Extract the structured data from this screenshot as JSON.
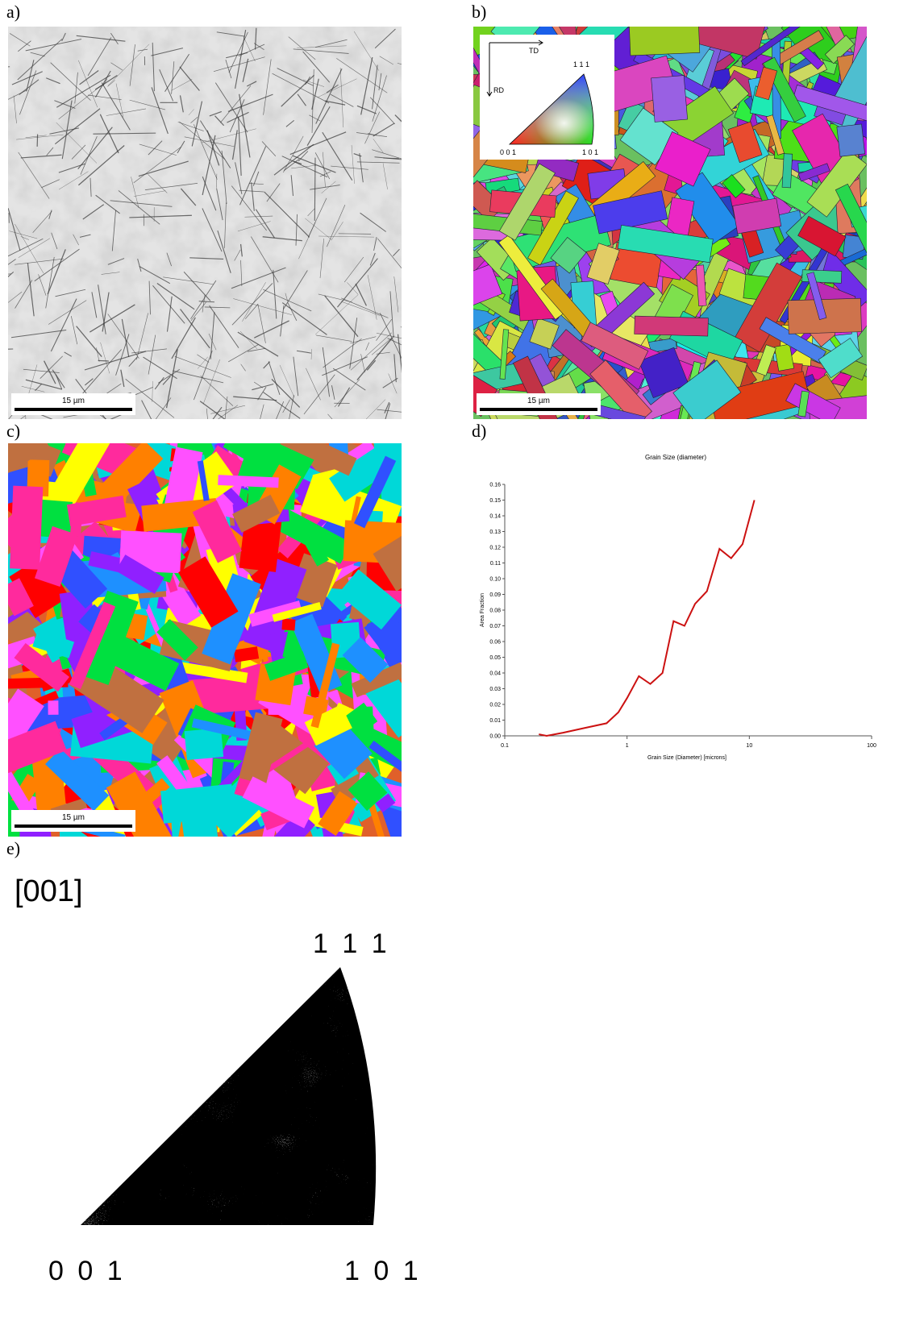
{
  "panels": {
    "a": {
      "label": "a)",
      "scale_bar": "15 µm"
    },
    "b": {
      "label": "b)",
      "scale_bar": "15 µm",
      "key": {
        "td": "TD",
        "rd": "RD",
        "corner_111": "1 1 1",
        "corner_001": "0 0 1",
        "corner_101": "1 0 1"
      }
    },
    "c": {
      "label": "c)",
      "scale_bar": "15 µm"
    },
    "d": {
      "label": "d)"
    },
    "e": {
      "label": "e)",
      "title": "[001]",
      "corner_111": "1 1 1",
      "corner_001": "0 0 1",
      "corner_101": "1 0 1"
    }
  },
  "chart_data": {
    "type": "line",
    "title": "Grain Size (diameter)",
    "x_label": "Grain Size (Diameter) [microns]",
    "y_label": "Area Fraction",
    "x": [
      0.19,
      0.22,
      0.3,
      0.45,
      0.68,
      0.85,
      1.0,
      1.25,
      1.55,
      1.95,
      2.4,
      2.95,
      3.6,
      4.5,
      5.7,
      7.1,
      8.8,
      11
    ],
    "values": [
      0.001,
      0,
      0.002,
      0.005,
      0.008,
      0.015,
      0.024,
      0.038,
      0.033,
      0.04,
      0.073,
      0.07,
      0.084,
      0.092,
      0.119,
      0.113,
      0.122,
      0.15
    ],
    "color": "#cc1111",
    "xlog": true,
    "grid": false,
    "xlim": [
      0.1,
      100
    ],
    "xticks": [
      0.1,
      1,
      10,
      100
    ],
    "ylim": [
      0,
      0.16
    ],
    "yticks": [
      {
        "value": 0,
        "label": "0.00"
      },
      {
        "value": 0.01,
        "label": "0.01"
      },
      {
        "value": 0.02,
        "label": "0.02"
      },
      {
        "value": 0.03,
        "label": "0.03"
      },
      {
        "value": 0.04,
        "label": "0.04"
      },
      {
        "value": 0.05,
        "label": "0.05"
      },
      {
        "value": 0.06,
        "label": "0.06"
      },
      {
        "value": 0.07,
        "label": "0.07"
      },
      {
        "value": 0.08,
        "label": "0.08"
      },
      {
        "value": 0.09,
        "label": "0.09"
      },
      {
        "value": 0.1,
        "label": "0.10"
      },
      {
        "value": 0.11,
        "label": "0.11"
      },
      {
        "value": 0.12,
        "label": "0.12"
      },
      {
        "value": 0.13,
        "label": "0.13"
      },
      {
        "value": 0.14,
        "label": "0.14"
      },
      {
        "value": 0.15,
        "label": "0.15"
      },
      {
        "value": 0.16,
        "label": "0.16"
      }
    ]
  }
}
